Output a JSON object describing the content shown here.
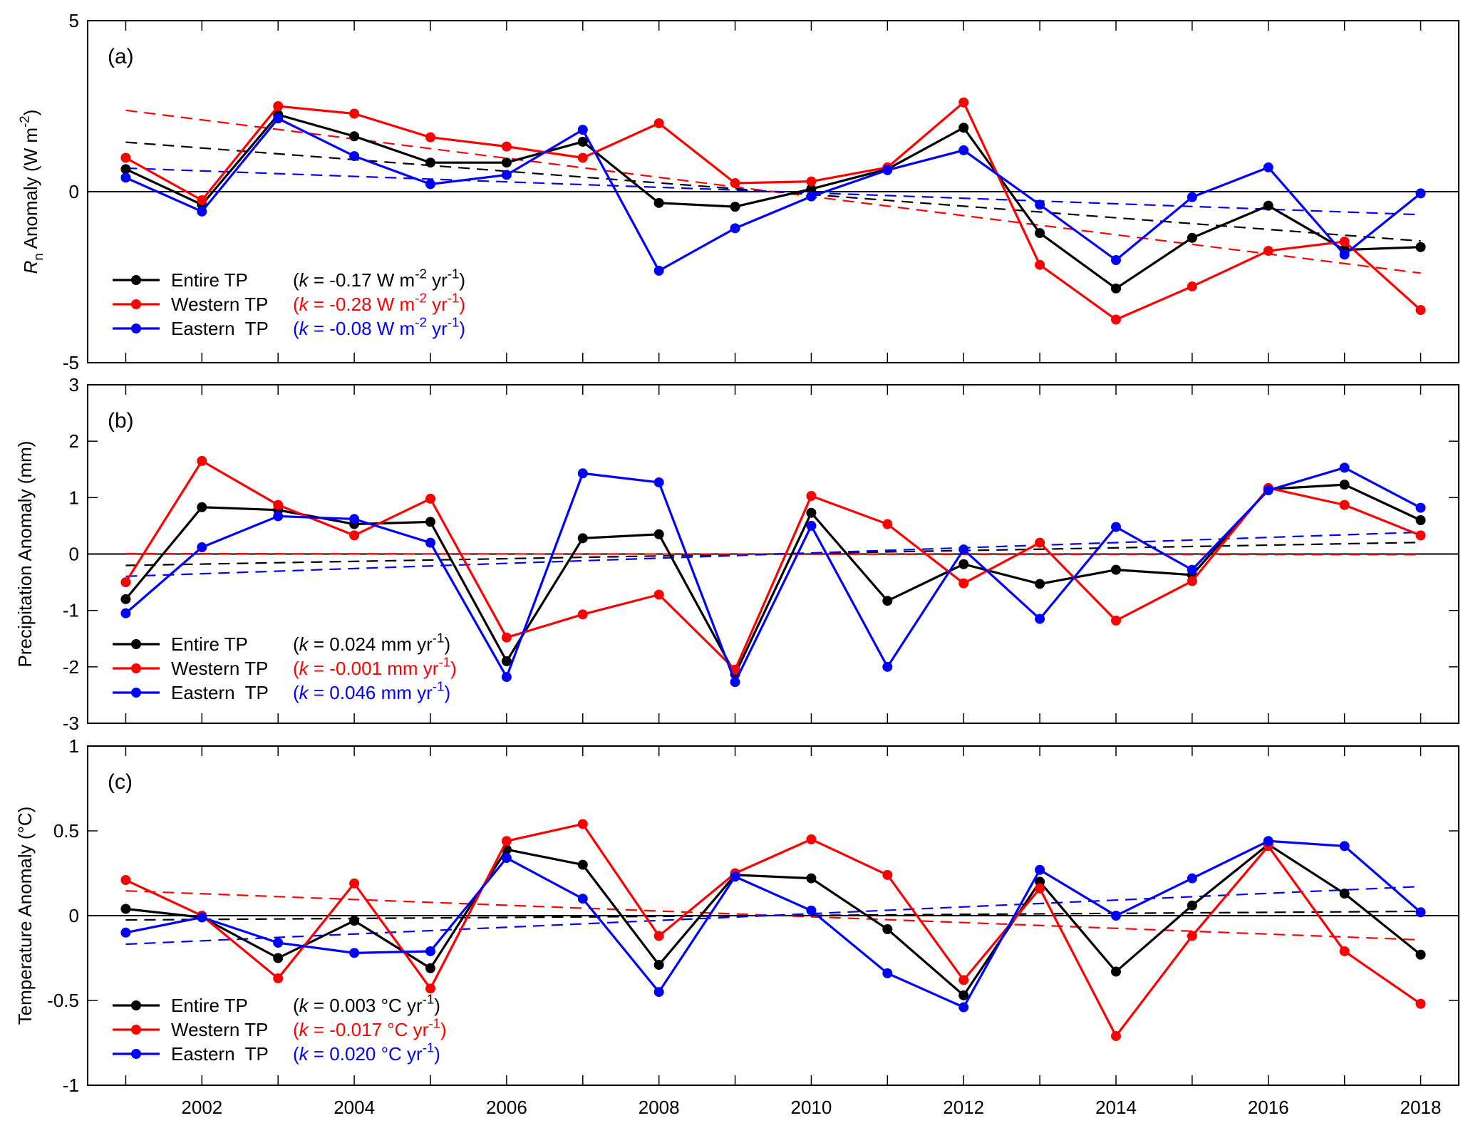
{
  "chart_data": [
    {
      "type": "line",
      "panel_label": "(a)",
      "ylabel": "R_n Anomaly (W m^-2)",
      "xlim": [
        2000.5,
        2018.5
      ],
      "ylim": [
        -5,
        5
      ],
      "yticks": [
        -5,
        0,
        5
      ],
      "x": [
        2001,
        2002,
        2003,
        2004,
        2005,
        2006,
        2007,
        2008,
        2009,
        2010,
        2011,
        2012,
        2013,
        2014,
        2015,
        2016,
        2017,
        2018
      ],
      "series": [
        {
          "name": "Entire TP",
          "color": "#000000",
          "k_label": "(k = -0.17 W m^-2 yr^-1)",
          "k": -0.17,
          "values": [
            0.66,
            -0.38,
            2.25,
            1.62,
            0.85,
            0.85,
            1.46,
            -0.33,
            -0.44,
            0.08,
            0.66,
            1.87,
            -1.21,
            -2.83,
            -1.35,
            -0.41,
            -1.7,
            -1.62
          ]
        },
        {
          "name": "Western TP",
          "color": "#ff0000",
          "k_label": "(k = -0.28 W m^-2 yr^-1)",
          "k": -0.28,
          "values": [
            0.99,
            -0.25,
            2.5,
            2.28,
            1.59,
            1.32,
            0.99,
            2.0,
            0.25,
            0.3,
            0.71,
            2.61,
            -2.14,
            -3.74,
            -2.77,
            -1.73,
            -1.46,
            -3.46
          ]
        },
        {
          "name": "Eastern  TP",
          "color": "#0000ff",
          "k_label": "(k = -0.08 W m^-2 yr^-1)",
          "k": -0.08,
          "values": [
            0.41,
            -0.58,
            2.14,
            1.04,
            0.22,
            0.49,
            1.81,
            -2.31,
            -1.07,
            -0.14,
            0.63,
            1.21,
            -0.38,
            -2.0,
            -0.16,
            0.71,
            -1.84,
            -0.05
          ]
        }
      ]
    },
    {
      "type": "line",
      "panel_label": "(b)",
      "ylabel": "Precipitation Anomaly (mm)",
      "xlim": [
        2000.5,
        2018.5
      ],
      "ylim": [
        -3,
        3
      ],
      "yticks": [
        -3,
        -2,
        -1,
        0,
        1,
        2,
        3
      ],
      "x": [
        2001,
        2002,
        2003,
        2004,
        2005,
        2006,
        2007,
        2008,
        2009,
        2010,
        2011,
        2012,
        2013,
        2014,
        2015,
        2016,
        2017,
        2018
      ],
      "series": [
        {
          "name": "Entire TP",
          "color": "#000000",
          "k_label": "(k = 0.024 mm yr^-1)",
          "k": 0.024,
          "values": [
            -0.8,
            0.83,
            0.78,
            0.53,
            0.57,
            -1.9,
            0.28,
            0.35,
            -2.13,
            0.73,
            -0.83,
            -0.18,
            -0.53,
            -0.28,
            -0.37,
            1.15,
            1.23,
            0.6
          ]
        },
        {
          "name": "Western TP",
          "color": "#ff0000",
          "k_label": "(k = -0.001 mm yr^-1)",
          "k": -0.001,
          "values": [
            -0.5,
            1.65,
            0.87,
            0.33,
            0.98,
            -1.48,
            -1.07,
            -0.72,
            -2.05,
            1.03,
            0.53,
            -0.52,
            0.2,
            -1.18,
            -0.48,
            1.17,
            0.87,
            0.33
          ]
        },
        {
          "name": "Eastern  TP",
          "color": "#0000ff",
          "k_label": "(k = 0.046 mm yr^-1)",
          "k": 0.046,
          "values": [
            -1.05,
            0.12,
            0.67,
            0.62,
            0.2,
            -2.18,
            1.43,
            1.27,
            -2.27,
            0.5,
            -2.0,
            0.08,
            -1.15,
            0.48,
            -0.28,
            1.13,
            1.53,
            0.82
          ]
        }
      ]
    },
    {
      "type": "line",
      "panel_label": "(c)",
      "ylabel": "Temperature Anomaly (°C)",
      "xlim": [
        2000.5,
        2018.5
      ],
      "ylim": [
        -1,
        1
      ],
      "yticks": [
        -1,
        -0.5,
        0,
        0.5,
        1
      ],
      "x": [
        2001,
        2002,
        2003,
        2004,
        2005,
        2006,
        2007,
        2008,
        2009,
        2010,
        2011,
        2012,
        2013,
        2014,
        2015,
        2016,
        2017,
        2018
      ],
      "xtick_labels": [
        "2002",
        "2004",
        "2006",
        "2008",
        "2010",
        "2012",
        "2014",
        "2016",
        "2018"
      ],
      "series": [
        {
          "name": "Entire TP",
          "color": "#000000",
          "k_label": "(k = 0.003 °C yr^-1)",
          "k": 0.003,
          "values": [
            0.04,
            -0.01,
            -0.25,
            -0.03,
            -0.31,
            0.39,
            0.3,
            -0.29,
            0.24,
            0.22,
            -0.08,
            -0.47,
            0.2,
            -0.33,
            0.06,
            0.42,
            0.13,
            -0.23
          ]
        },
        {
          "name": "Western TP",
          "color": "#ff0000",
          "k_label": "(k = -0.017 °C yr^-1)",
          "k": -0.017,
          "values": [
            0.21,
            0.0,
            -0.37,
            0.19,
            -0.43,
            0.44,
            0.54,
            -0.12,
            0.25,
            0.45,
            0.24,
            -0.38,
            0.16,
            -0.71,
            -0.12,
            0.41,
            -0.21,
            -0.52
          ]
        },
        {
          "name": "Eastern  TP",
          "color": "#0000ff",
          "k_label": "(k = 0.020 °C yr^-1)",
          "k": 0.02,
          "values": [
            -0.1,
            -0.01,
            -0.16,
            -0.22,
            -0.21,
            0.34,
            0.1,
            -0.45,
            0.23,
            0.03,
            -0.34,
            -0.54,
            0.27,
            0.0,
            0.22,
            0.44,
            0.41,
            0.02
          ]
        }
      ]
    }
  ]
}
